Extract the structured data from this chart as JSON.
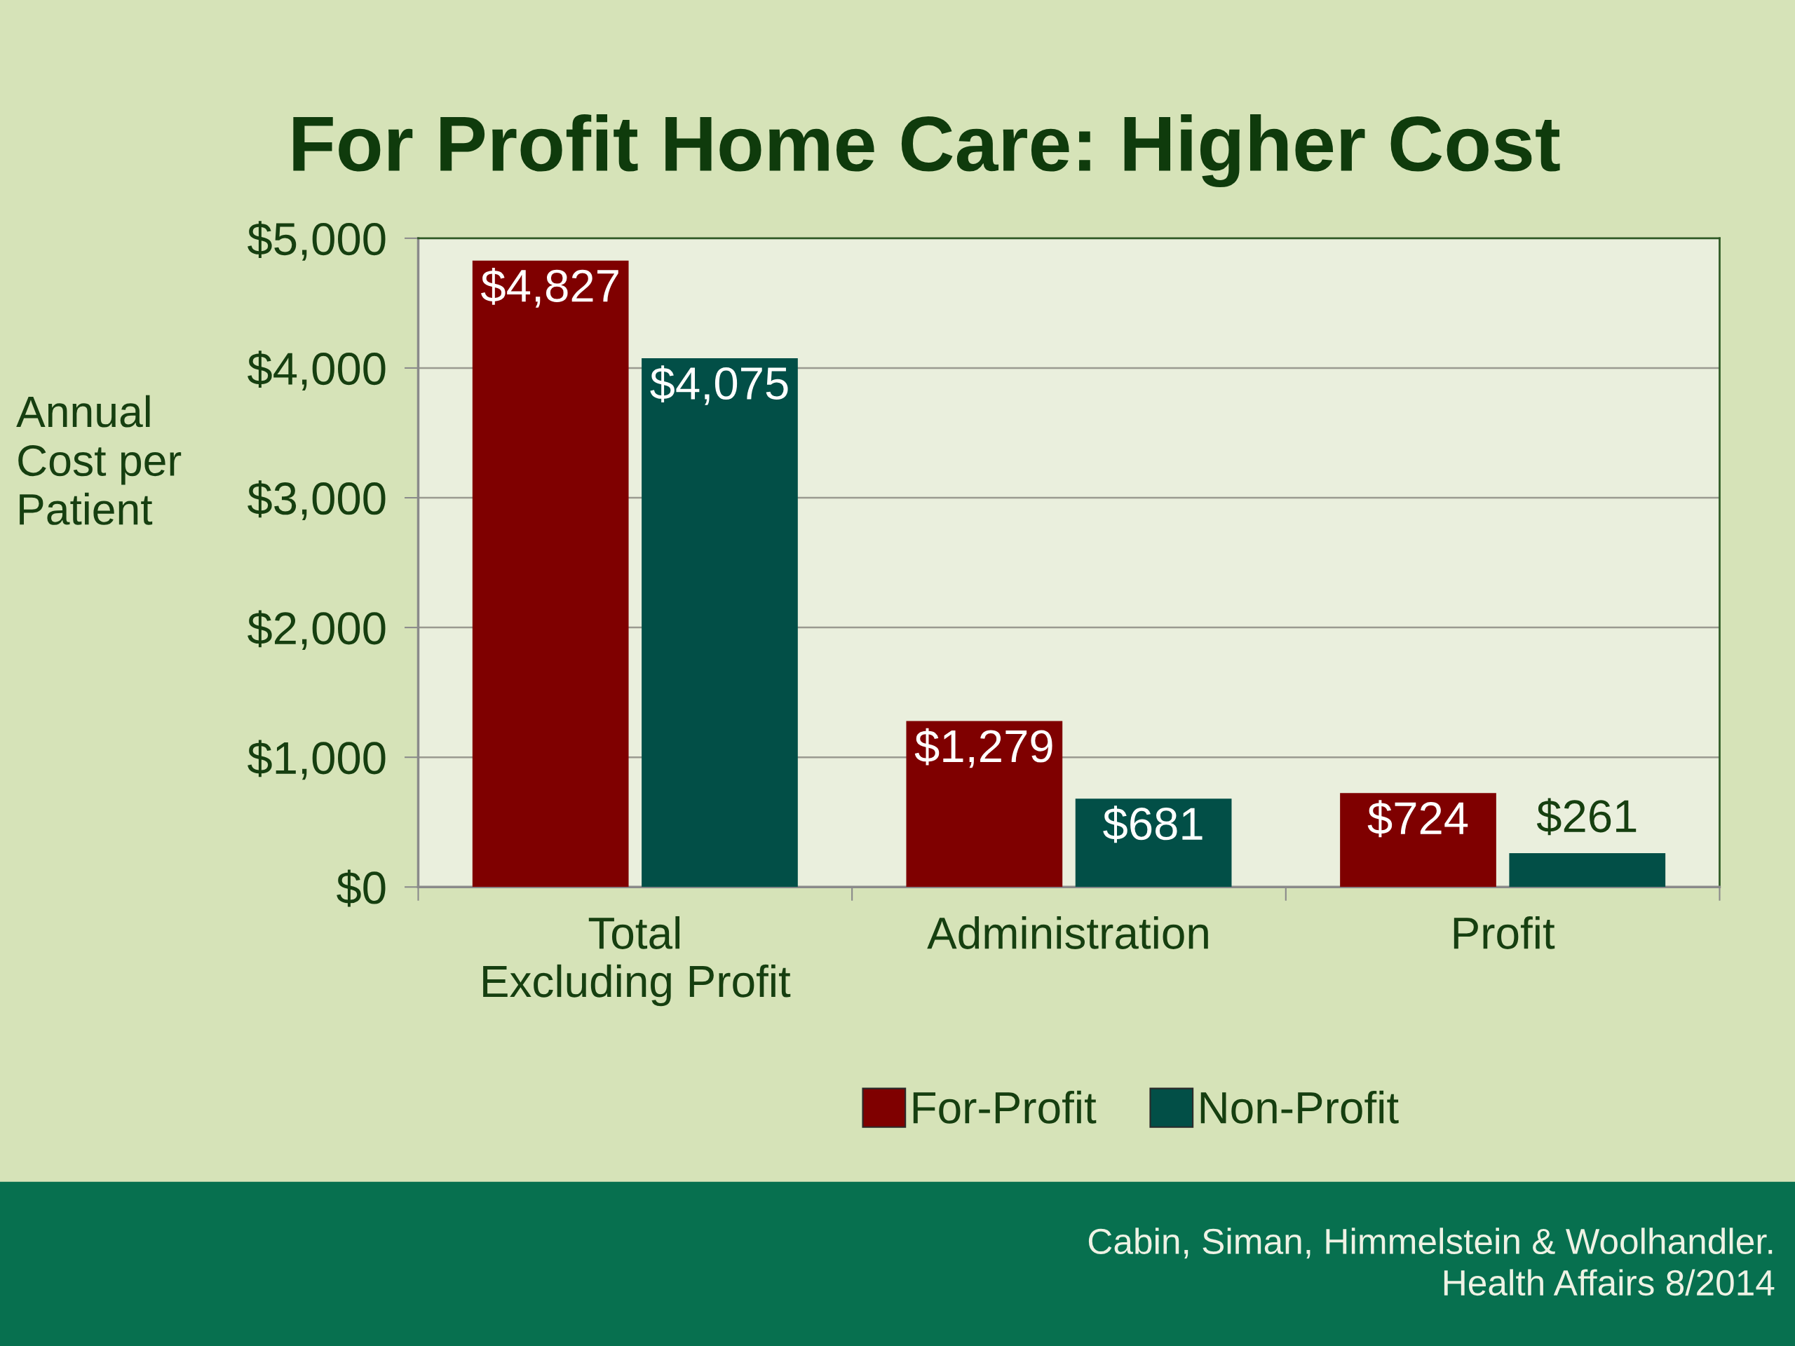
{
  "chart_data": {
    "type": "bar",
    "title": "For Profit Home Care: Higher Cost",
    "ylabel": "Annual\nCost per\nPatient",
    "categories": [
      "Total\nExcluding Profit",
      "Administration",
      "Profit"
    ],
    "series": [
      {
        "name": "For-Profit",
        "color": "#7f0000",
        "values": [
          4827,
          1279,
          724
        ],
        "value_labels": [
          "$4,827",
          "$1,279",
          "$724"
        ]
      },
      {
        "name": "Non-Profit",
        "color": "#024f47",
        "values": [
          4075,
          681,
          261
        ],
        "value_labels": [
          "$4,075",
          "$681",
          "$261"
        ]
      }
    ],
    "ylim": [
      0,
      5000
    ],
    "yticks": [
      {
        "value": 0,
        "label": "$0"
      },
      {
        "value": 1000,
        "label": "$1,000"
      },
      {
        "value": 2000,
        "label": "$2,000"
      },
      {
        "value": 3000,
        "label": "$3,000"
      },
      {
        "value": 4000,
        "label": "$4,000"
      },
      {
        "value": 5000,
        "label": "$5,000"
      }
    ],
    "grid": "y",
    "legend": "bottom",
    "annotations": [
      "Cabin, Siman, Himmelstein & Woolhandler.\nHealth Affairs 8/2014"
    ]
  }
}
